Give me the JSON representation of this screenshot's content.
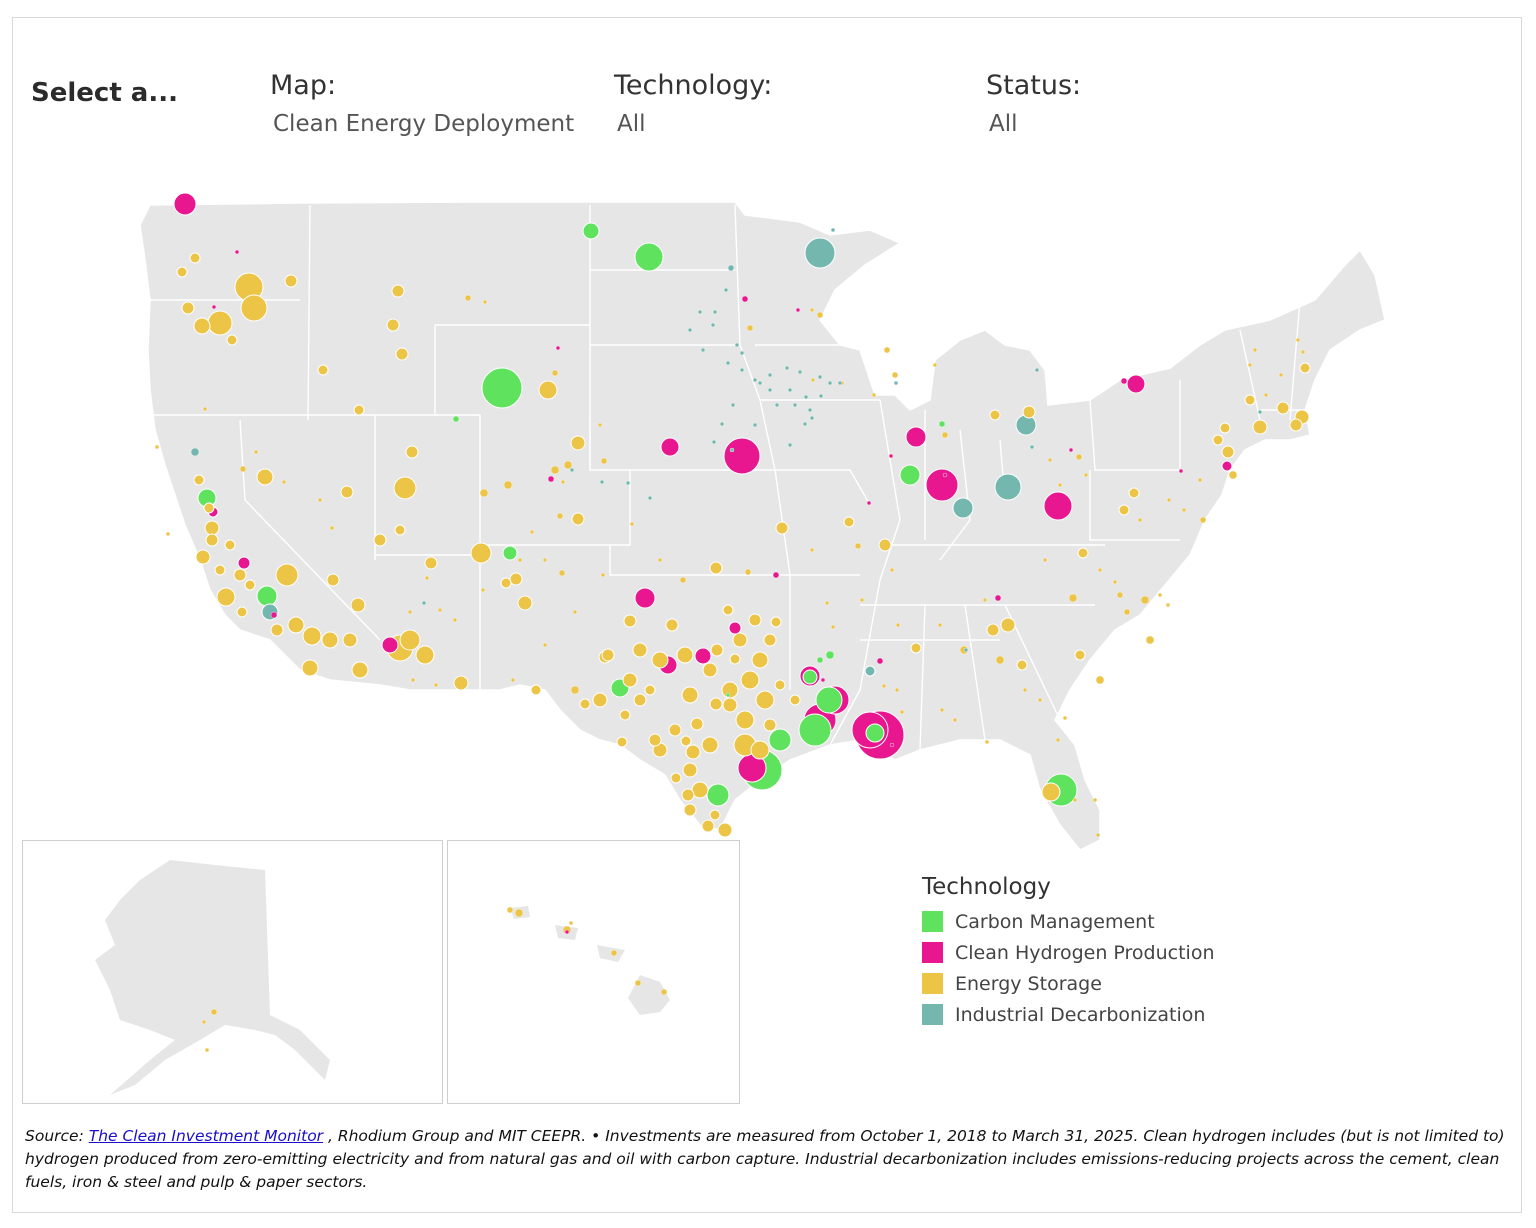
{
  "header": {
    "select_title": "Select a...",
    "filters": [
      {
        "label": "Map:",
        "value": "Clean Energy Deployment"
      },
      {
        "label": "Technology:",
        "value": "All"
      },
      {
        "label": "Status:",
        "value": "All"
      }
    ]
  },
  "legend": {
    "title": "Technology",
    "items": [
      {
        "label": "Carbon Management",
        "color": "#5fe35f"
      },
      {
        "label": "Clean Hydrogen Production",
        "color": "#e8168f"
      },
      {
        "label": "Energy Storage",
        "color": "#ecc446"
      },
      {
        "label": "Industrial Decarbonization",
        "color": "#74b7af"
      }
    ]
  },
  "source": {
    "prefix": "Source: ",
    "link_text": "The Clean Investment Monitor",
    "rest": " , Rhodium Group and MIT CEEPR. • Investments are measured from October 1, 2018 to March 31, 2025. Clean hydrogen includes (but is not limited to) hydrogen produced from zero-emitting electricity and from natural gas and oil with carbon capture. Industrial decarbonization includes emissions-reducing projects across the cement, clean fuels, iron & steel and pulp & paper sectors."
  },
  "colors": {
    "land": "#e6e6e6",
    "border": "#ffffff",
    "carbon": "#5fe35f",
    "hydrogen": "#e8168f",
    "storage": "#ecc446",
    "industrial": "#74b7af"
  }
}
